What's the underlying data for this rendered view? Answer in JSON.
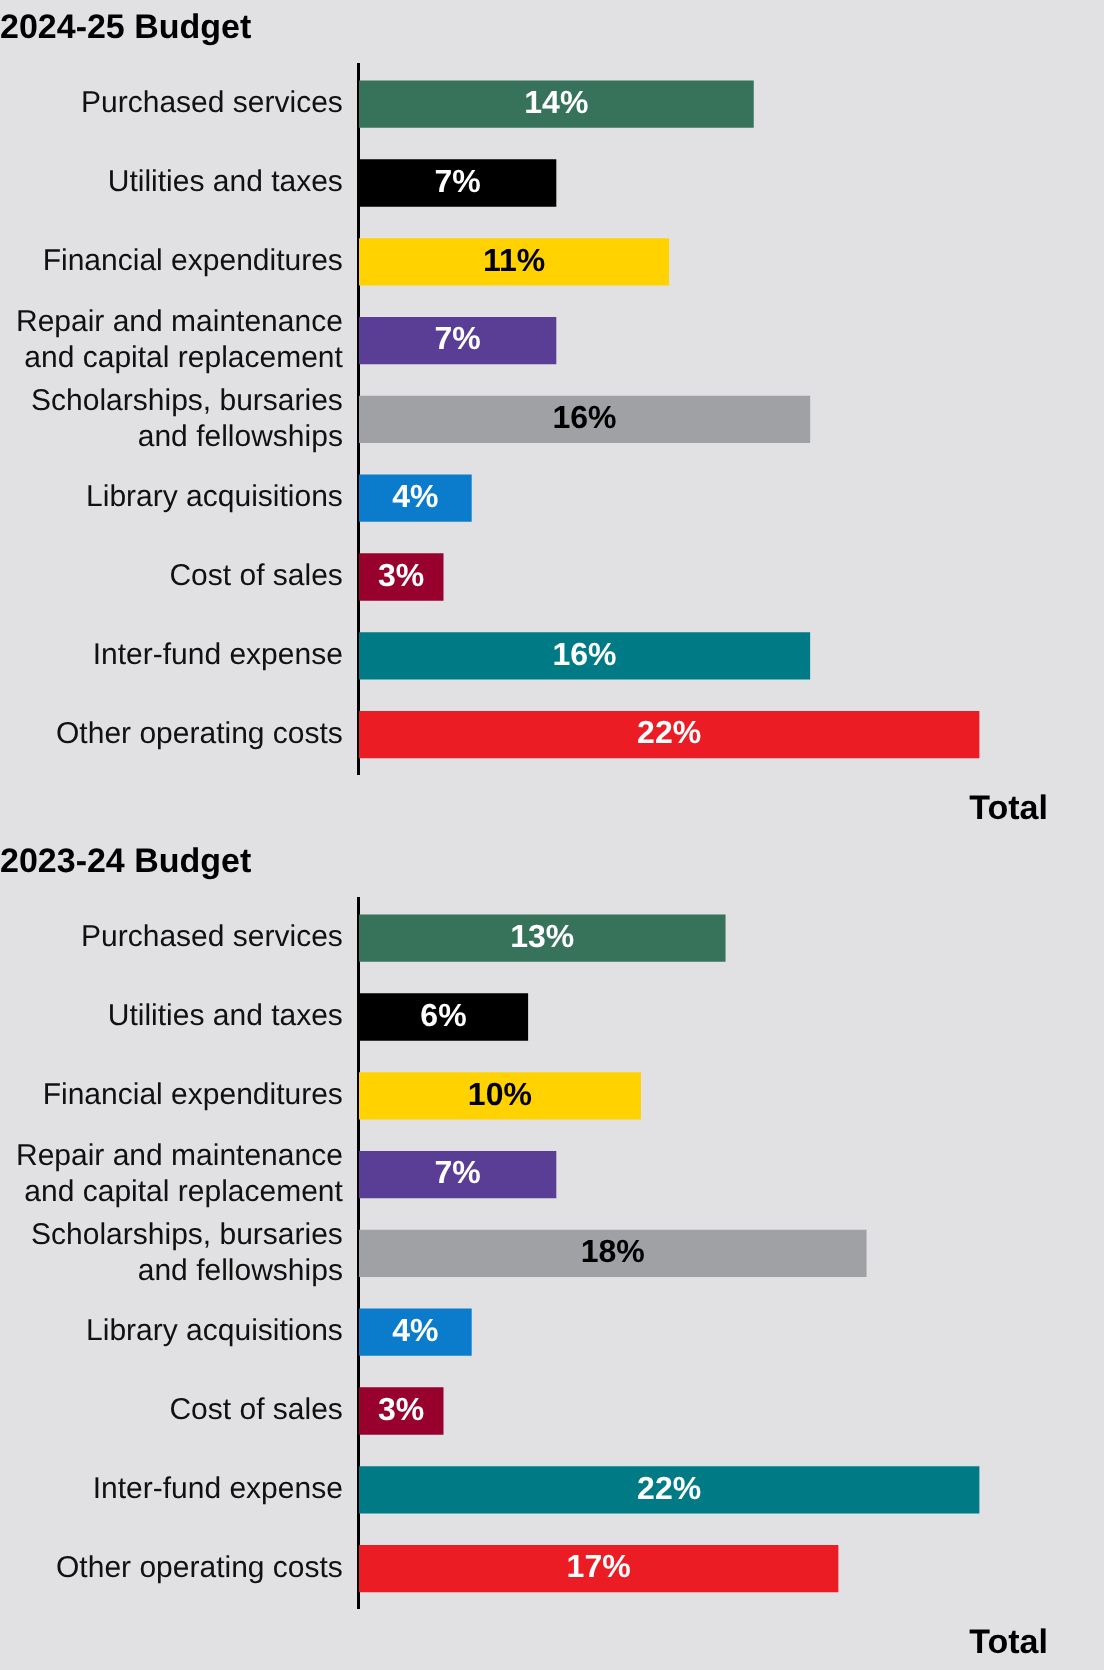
{
  "chart_data": [
    {
      "type": "bar",
      "orientation": "horizontal",
      "title": "2024-25 Budget",
      "categories": [
        "Purchased services",
        "Utilities and taxes",
        "Financial expenditures",
        "Repair and maintenance and capital replacement",
        "Scholarships, bursaries and fellowships",
        "Library acquisitions",
        "Cost of sales",
        "Inter-fund expense",
        "Other operating costs"
      ],
      "values": [
        14,
        7,
        11,
        7,
        16,
        4,
        3,
        16,
        22
      ],
      "colors": [
        "#36735a",
        "#000000",
        "#ffd200",
        "#5a3e96",
        "#a0a1a5",
        "#0b7ccc",
        "#98002e",
        "#007a84",
        "#ec1c24"
      ],
      "value_labels": [
        "14%",
        "7%",
        "11%",
        "7%",
        "16%",
        "4%",
        "3%",
        "16%",
        "22%"
      ],
      "annotations": [
        "Total"
      ],
      "grid": false,
      "legend": false
    },
    {
      "type": "bar",
      "orientation": "horizontal",
      "title": "2023-24 Budget",
      "categories": [
        "Purchased services",
        "Utilities and taxes",
        "Financial expenditures",
        "Repair and maintenance and capital replacement",
        "Scholarships, bursaries and fellowships",
        "Library acquisitions",
        "Cost of sales",
        "Inter-fund expense",
        "Other operating costs"
      ],
      "values": [
        13,
        6,
        10,
        7,
        18,
        4,
        3,
        22,
        17
      ],
      "colors": [
        "#36735a",
        "#000000",
        "#ffd200",
        "#5a3e96",
        "#a0a1a5",
        "#0b7ccc",
        "#98002e",
        "#007a84",
        "#ec1c24"
      ],
      "value_labels": [
        "13%",
        "6%",
        "10%",
        "7%",
        "18%",
        "4%",
        "3%",
        "22%",
        "17%"
      ],
      "annotations": [
        "Total"
      ],
      "grid": false,
      "legend": false
    }
  ]
}
